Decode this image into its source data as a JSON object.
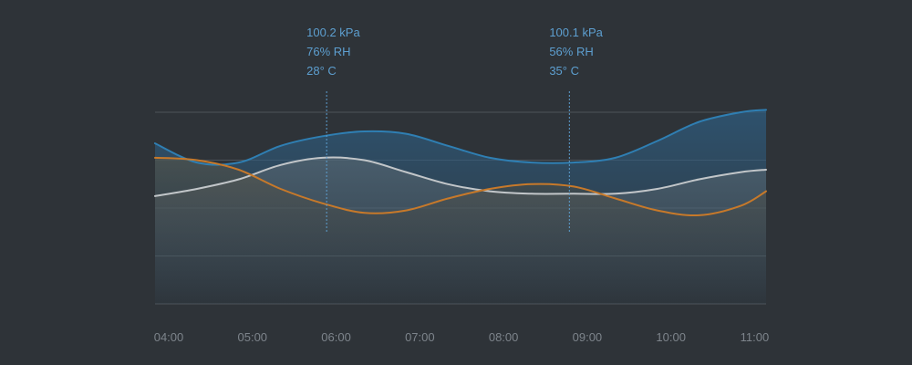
{
  "chart_data": {
    "type": "area",
    "title": "",
    "xlabel": "",
    "ylabel": "",
    "grid": true,
    "x_ticks": [
      "04:00",
      "05:00",
      "06:00",
      "07:00",
      "08:00",
      "09:00",
      "10:00",
      "11:00"
    ],
    "x": [
      4.0,
      4.5,
      5.0,
      5.5,
      6.0,
      6.5,
      7.0,
      7.5,
      8.0,
      8.5,
      9.0,
      9.5,
      10.0,
      10.5,
      11.0,
      11.3
    ],
    "xlim": [
      4.0,
      11.3
    ],
    "ylim": [
      0,
      4
    ],
    "series": [
      {
        "color": "#2f7fb3",
        "fill": "#2c4a60",
        "values": [
          3.35,
          2.95,
          2.95,
          3.3,
          3.5,
          3.6,
          3.55,
          3.3,
          3.05,
          2.95,
          2.95,
          3.05,
          3.4,
          3.8,
          4.0,
          4.05
        ]
      },
      {
        "color": "#c2c6c9",
        "fill": "#4c5559",
        "values": [
          2.25,
          2.4,
          2.6,
          2.9,
          3.05,
          3.0,
          2.75,
          2.5,
          2.35,
          2.3,
          2.3,
          2.3,
          2.4,
          2.6,
          2.75,
          2.8
        ]
      },
      {
        "color": "#c7792a",
        "fill": "#4a4638",
        "values": [
          3.05,
          3.0,
          2.8,
          2.4,
          2.1,
          1.9,
          1.95,
          2.2,
          2.4,
          2.5,
          2.45,
          2.2,
          1.95,
          1.85,
          2.05,
          2.35
        ]
      }
    ],
    "markers": [
      {
        "x": 6.05,
        "lines": [
          "100.2 kPa",
          "76% RH",
          "28° C"
        ],
        "color": "#5d9fd0"
      },
      {
        "x": 8.95,
        "lines": [
          "100.1 kPa",
          "56% RH",
          "35° C"
        ],
        "color": "#5d9fd0"
      }
    ]
  }
}
